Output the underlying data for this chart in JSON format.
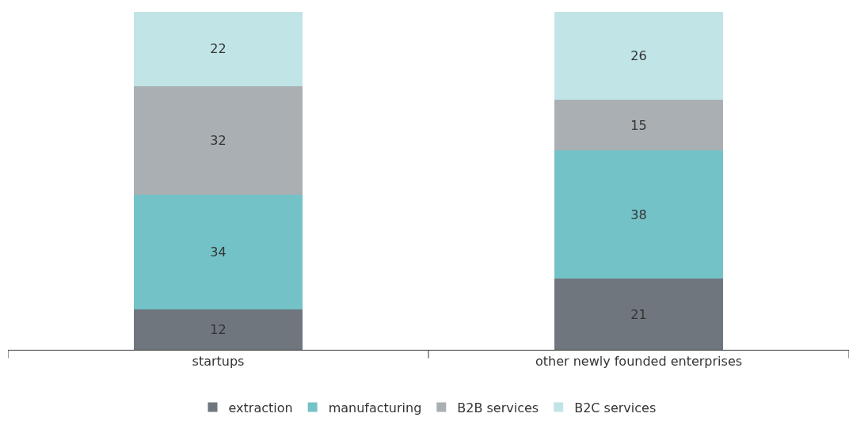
{
  "chart_data": {
    "type": "bar",
    "stacked": true,
    "data_labels": true,
    "legend": "bottom",
    "categories": [
      "startups",
      "other newly founded enterprises"
    ],
    "series": [
      {
        "name": "extraction",
        "color": "#6f767e",
        "values": [
          12,
          21
        ]
      },
      {
        "name": "manufacturing",
        "color": "#73c2c7",
        "values": [
          34,
          38
        ]
      },
      {
        "name": "B2B services",
        "color": "#aaafb3",
        "values": [
          32,
          15
        ]
      },
      {
        "name": "B2C services",
        "color": "#c1e4e6",
        "values": [
          22,
          26
        ]
      }
    ]
  }
}
